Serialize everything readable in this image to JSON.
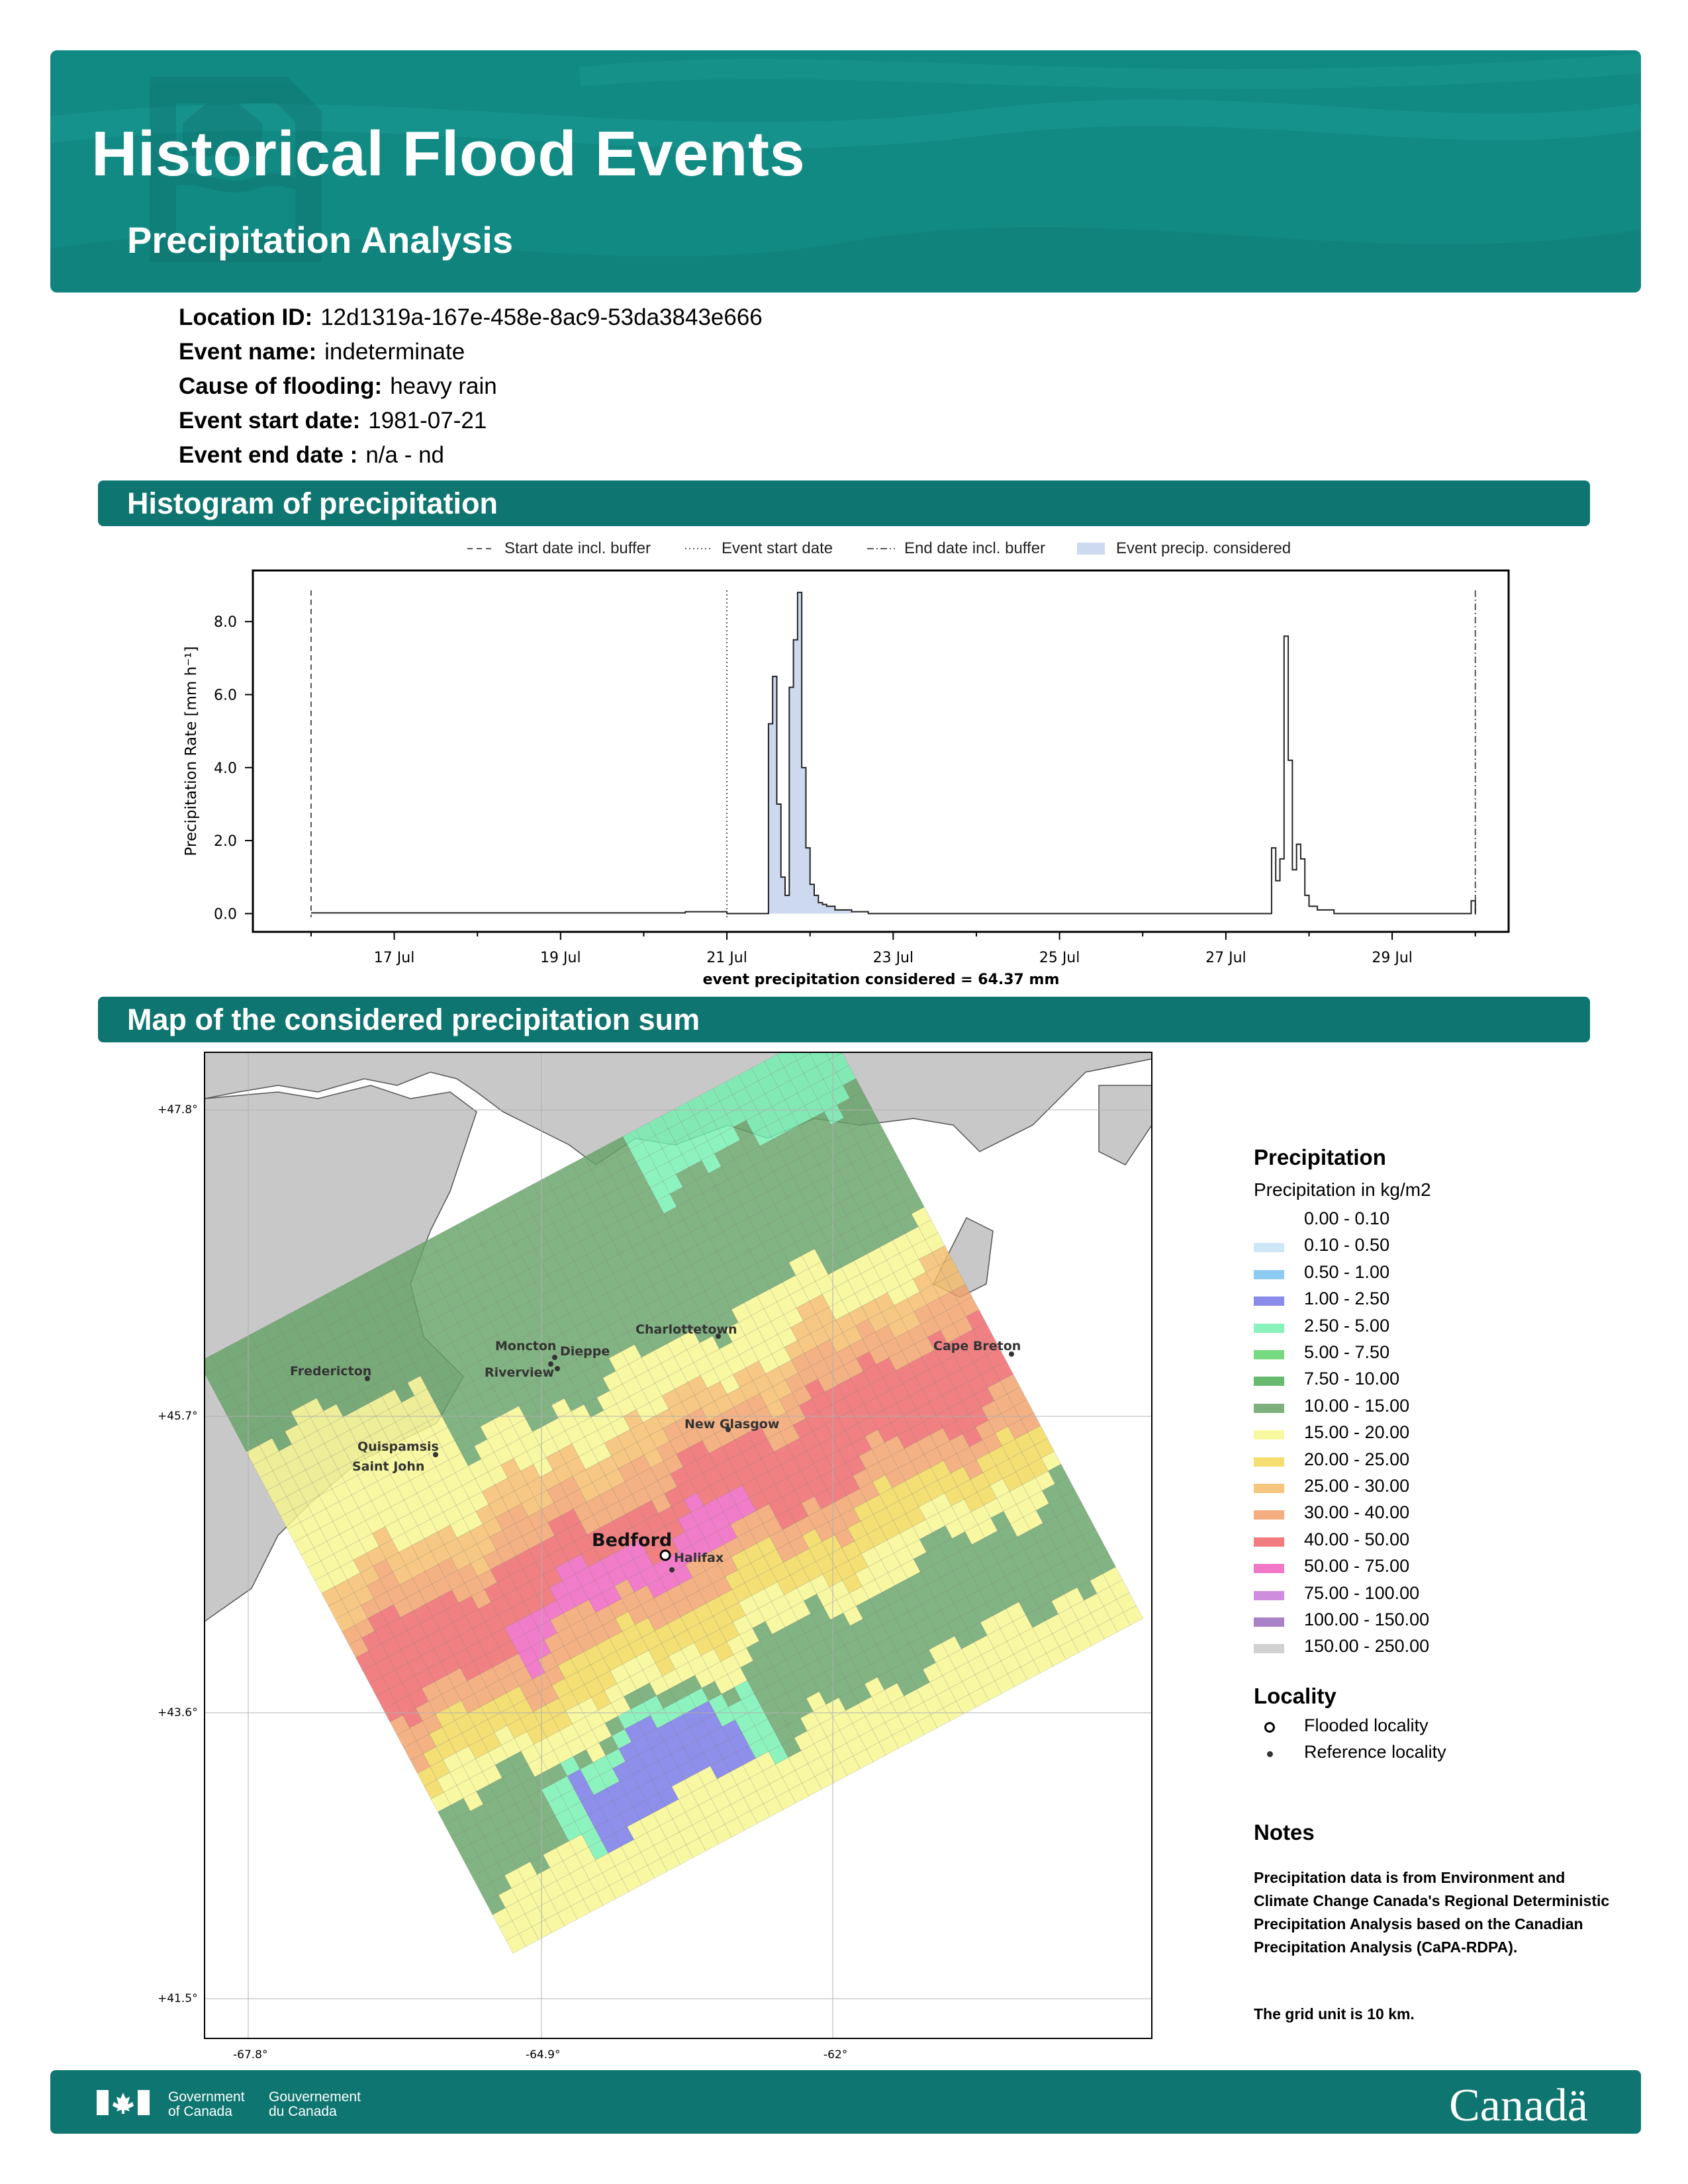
{
  "header": {
    "title": "Historical Flood Events",
    "subtitle": "Precipitation Analysis",
    "icon": "house-flood-watermark-icon"
  },
  "event_info": {
    "location_id_label": "Location ID:",
    "location_id": "12d1319a-167e-458e-8ac9-53da3843e666",
    "event_name_label": "Event name:",
    "event_name": "indeterminate",
    "cause_label": "Cause of flooding:",
    "cause": "heavy rain",
    "start_label": "Event start date:",
    "start": "1981-07-21",
    "end_label": "Event end date :",
    "end": "n/a - nd"
  },
  "histogram_section": {
    "title": "Histogram of precipitation"
  },
  "map_section": {
    "title": "Map of the considered precipitation sum"
  },
  "histogram_legend": {
    "start_buffer": "Start date incl. buffer",
    "event_start": "Event start date",
    "end_buffer": "End date incl. buffer",
    "event_precip": "Event precip. considered"
  },
  "chart_data": {
    "type": "line",
    "ylabel": "Precipitation Rate [mm h⁻¹]",
    "xlabel": "event precipitation considered = 64.37 mm",
    "ylim": [
      -0.5,
      9.4
    ],
    "xlim": [
      15.3,
      30.4
    ],
    "yticks": [
      0.0,
      2.0,
      4.0,
      6.0,
      8.0
    ],
    "ytick_labels": [
      "0.0",
      "2.0",
      "4.0",
      "6.0",
      "8.0"
    ],
    "xticks": [
      17,
      19,
      21,
      23,
      25,
      27,
      29
    ],
    "xtick_labels": [
      "17 Jul",
      "19 Jul",
      "21 Jul",
      "23 Jul",
      "25 Jul",
      "27 Jul",
      "29 Jul"
    ],
    "start_buffer_day": 16.0,
    "event_start_day": 21.0,
    "end_buffer_day": 30.0,
    "shaded_range": [
      21.0,
      22.5
    ],
    "series": [
      {
        "x": [
          16.0,
          20.0,
          20.5,
          21.0,
          21.45,
          21.5,
          21.55,
          21.6,
          21.65,
          21.7,
          21.75,
          21.8,
          21.85,
          21.9,
          21.95,
          22.0,
          22.05,
          22.1,
          22.15,
          22.2,
          22.3,
          22.5,
          22.7,
          27.5,
          27.55,
          27.6,
          27.65,
          27.7,
          27.75,
          27.8,
          27.85,
          27.9,
          27.95,
          28.0,
          28.1,
          28.3,
          29.9,
          29.95,
          30.0
        ],
        "y": [
          0.02,
          0.02,
          0.05,
          0.0,
          0.0,
          5.2,
          6.5,
          3.0,
          1.0,
          0.5,
          6.2,
          7.5,
          8.8,
          4.0,
          1.8,
          0.8,
          0.5,
          0.3,
          0.25,
          0.2,
          0.1,
          0.05,
          0.0,
          0.0,
          1.8,
          0.9,
          1.5,
          7.6,
          4.2,
          1.2,
          1.9,
          1.5,
          0.5,
          0.2,
          0.1,
          0.0,
          0.0,
          0.35,
          0.0
        ]
      }
    ]
  },
  "map": {
    "lat_ticks": [
      "+47.8°",
      "+45.7°",
      "+43.6°",
      "+41.5°"
    ],
    "lon_ticks": [
      "-67.8°",
      "-64.9°",
      "-62°"
    ],
    "places": {
      "fredericton": "Fredericton",
      "moncton": "Moncton",
      "dieppe": "Dieppe",
      "riverview": "Riverview",
      "charlottetown": "Charlottetown",
      "cape_breton": "Cape Breton",
      "new_glasgow": "New Glasgow",
      "quispamsis": "Quispamsis",
      "saint_john": "Saint John",
      "bedford": "Bedford",
      "halifax": "Halifax"
    }
  },
  "map_legend": {
    "title": "Precipitation",
    "subtitle": "Precipitation in kg/m2",
    "classes": [
      {
        "label": "0.00 - 0.10",
        "color": "#ffffff"
      },
      {
        "label": "0.10 - 0.50",
        "color": "#c6e3f6"
      },
      {
        "label": "0.50 - 1.00",
        "color": "#79c1f2"
      },
      {
        "label": "1.00 - 2.50",
        "color": "#7575e6"
      },
      {
        "label": "2.50 - 5.00",
        "color": "#74f0b0"
      },
      {
        "label": "5.00 - 7.50",
        "color": "#5fd46a"
      },
      {
        "label": "7.50 - 10.00",
        "color": "#4fae58"
      },
      {
        "label": "10.00 - 15.00",
        "color": "#66a266"
      },
      {
        "label": "15.00 - 20.00",
        "color": "#f6f78f"
      },
      {
        "label": "20.00 - 25.00",
        "color": "#f2d857"
      },
      {
        "label": "25.00 - 30.00",
        "color": "#f4bc68"
      },
      {
        "label": "30.00 - 40.00",
        "color": "#f2a068"
      },
      {
        "label": "40.00 - 50.00",
        "color": "#ee6467"
      },
      {
        "label": "50.00 - 75.00",
        "color": "#ee5fbd"
      },
      {
        "label": "75.00 - 100.00",
        "color": "#c57ad7"
      },
      {
        "label": "100.00 - 150.00",
        "color": "#9a6bbd"
      },
      {
        "label": "150.00 - 250.00",
        "color": "#c9c9c9"
      }
    ],
    "locality_title": "Locality",
    "flooded": "Flooded locality",
    "reference": "Reference locality"
  },
  "notes": {
    "title": "Notes",
    "body": "Precipitation data is from Environment and Climate Change Canada's Regional Deterministic Precipitation Analysis based on the Canadian Precipitation Analysis (CaPA-RDPA).",
    "grid_unit": "The grid unit is 10 km."
  },
  "footer": {
    "gov_en_1": "Government",
    "gov_en_2": "of Canada",
    "gov_fr_1": "Gouvernement",
    "gov_fr_2": "du Canada",
    "wordmark": "Canadä"
  }
}
